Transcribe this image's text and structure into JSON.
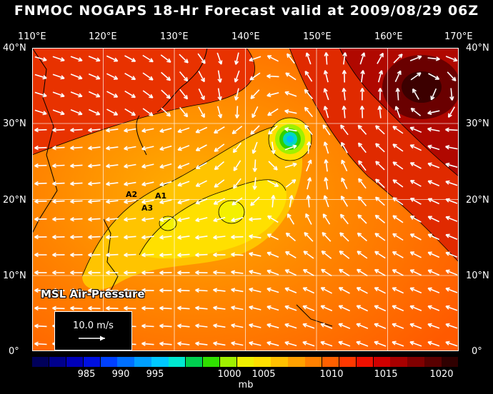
{
  "title": "FNMOC NOGAPS 18-Hr Forecast valid at 2009/08/29 06Z",
  "lon_labels": [
    "110°E",
    "120°E",
    "130°E",
    "140°E",
    "150°E",
    "160°E",
    "170°E"
  ],
  "lat_labels": [
    "40°N",
    "30°N",
    "20°N",
    "10°N",
    "0°"
  ],
  "field_label": "MSL Air-Pressure",
  "vector_scale_label": "10.0 m/s",
  "storm_markers": [
    "A1",
    "A2",
    "A3"
  ],
  "colorbar": {
    "tick_labels": [
      "985",
      "990",
      "995",
      "1000",
      "1005",
      "1010",
      "1015",
      "1020"
    ],
    "unit": "mb",
    "colors": [
      "#00005a",
      "#00008c",
      "#0000b8",
      "#0010e0",
      "#0040ff",
      "#0070ff",
      "#00a0ff",
      "#00c8ff",
      "#00e8d0",
      "#00d050",
      "#30e000",
      "#a0f000",
      "#f0f000",
      "#ffe000",
      "#ffc000",
      "#ffa000",
      "#ff8000",
      "#ff6000",
      "#ff3800",
      "#f01000",
      "#d00000",
      "#a80000",
      "#800000",
      "#5a0000",
      "#300000"
    ]
  },
  "colors": {
    "background": "#000000",
    "vectors": "#ffffff",
    "contours": "#000000",
    "grid": "#ffffff"
  }
}
